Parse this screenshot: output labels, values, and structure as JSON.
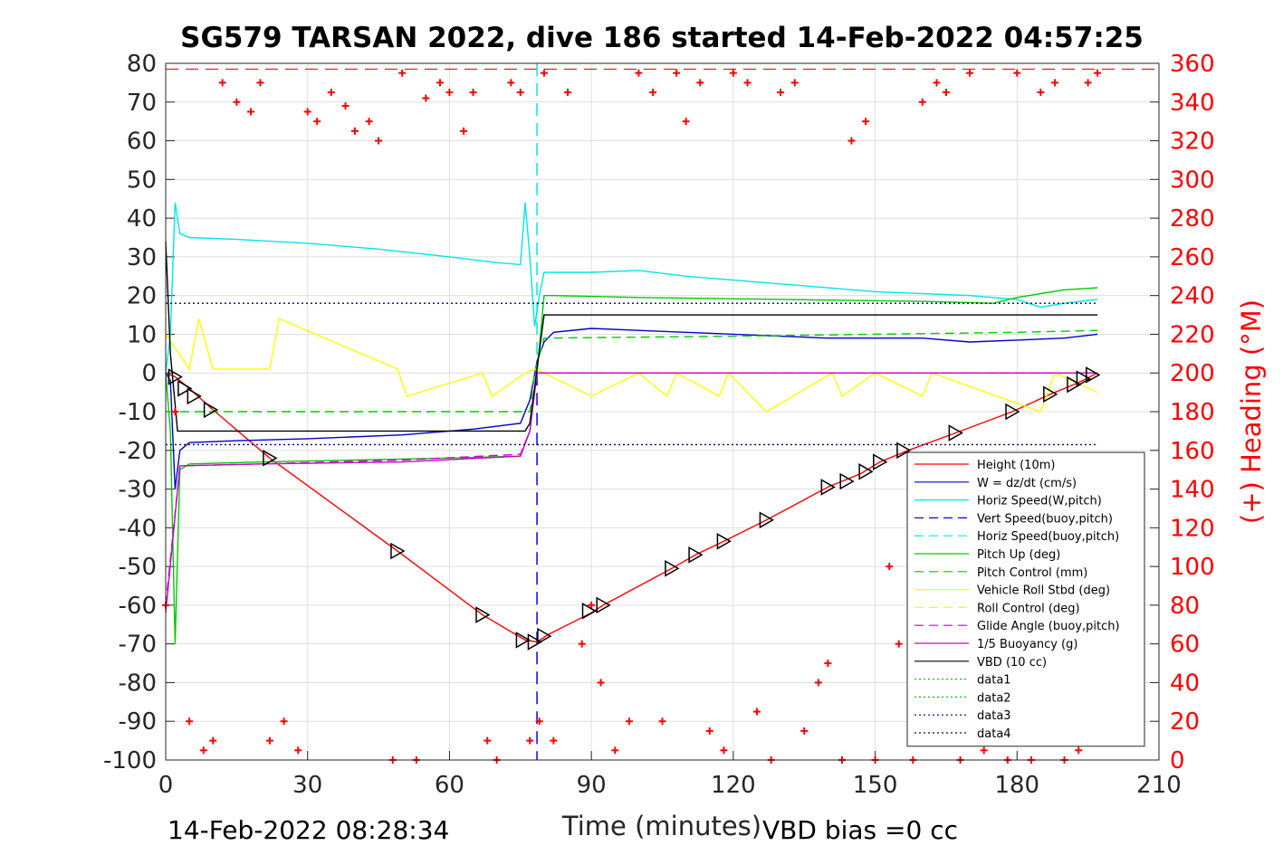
{
  "chart_data": {
    "type": "line",
    "title": "SG579 TARSAN 2022, dive 186 started 14-Feb-2022 04:57:25",
    "xlabel": "Time (minutes)",
    "ylabel": "",
    "ylabel_right": "(+) Heading (°M)",
    "xlim": [
      0,
      210
    ],
    "ylim": [
      -100,
      80
    ],
    "ylim_right": [
      0,
      360
    ],
    "x_ticks": [
      "0",
      "30",
      "60",
      "90",
      "120",
      "150",
      "180",
      "210"
    ],
    "y_ticks": [
      "-100",
      "-90",
      "-80",
      "-70",
      "-60",
      "-50",
      "-40",
      "-30",
      "-20",
      "-10",
      "0",
      "10",
      "20",
      "30",
      "40",
      "50",
      "60",
      "70",
      "80"
    ],
    "y_ticks_right": [
      "0",
      "20",
      "40",
      "60",
      "80",
      "100",
      "120",
      "140",
      "160",
      "180",
      "200",
      "220",
      "240",
      "260",
      "280",
      "300",
      "320",
      "340",
      "360"
    ],
    "grid": true,
    "legend_position": "lower-right",
    "footer_left": "14-Feb-2022 08:28:34",
    "footer_right": "VBD bias =0 cc",
    "apogee_time": 78.5,
    "series": [
      {
        "name": "Height (10m)",
        "color": "#ff0000",
        "style": "solid",
        "x": [
          0,
          2,
          5,
          10,
          22,
          49,
          67,
          76,
          78.5,
          81,
          90,
          92.5,
          107,
          112,
          118,
          127,
          140,
          147,
          151,
          157,
          167,
          179,
          187,
          193,
          197
        ],
        "y": [
          0,
          -1,
          -4,
          -9.5,
          -22,
          -46,
          -62.5,
          -69,
          -69.5,
          -67.5,
          -62,
          -60,
          -50.5,
          -47,
          -43.5,
          -38,
          -29.5,
          -26,
          -23,
          -20,
          -15.5,
          -10,
          -5.5,
          -2.5,
          0
        ]
      },
      {
        "name": "W = dz/dt (cm/s)",
        "color": "#0000cc",
        "style": "solid",
        "x": [
          0,
          1,
          2,
          3,
          5,
          15,
          30,
          50,
          65,
          75,
          77,
          78.5,
          80,
          82,
          90,
          100,
          120,
          140,
          160,
          170,
          180,
          190,
          197
        ],
        "y": [
          0,
          -2,
          -30,
          -20,
          -18,
          -17.5,
          -17,
          -16,
          -14.5,
          -13,
          -7,
          3,
          8,
          10.5,
          11.5,
          11,
          10,
          9,
          9,
          8,
          8.5,
          9,
          10
        ]
      },
      {
        "name": "Horiz Speed(W,pitch)",
        "color": "#00e5e5",
        "style": "solid",
        "x": [
          0,
          1,
          2,
          3,
          5,
          15,
          30,
          45,
          60,
          70,
          75,
          76,
          77,
          78,
          79,
          80,
          82,
          90,
          100,
          110,
          120,
          130,
          140,
          150,
          160,
          170,
          180,
          185,
          190,
          197
        ],
        "y": [
          0,
          10,
          44,
          36,
          35,
          34.5,
          33.5,
          32,
          30,
          28.5,
          28,
          44,
          30,
          12,
          20,
          26,
          26,
          26,
          26.5,
          25,
          24,
          23,
          22,
          21,
          20.5,
          20,
          19,
          17,
          18,
          19
        ]
      },
      {
        "name": "Vert Speed(buoy,pitch)",
        "color": "#0000ff",
        "style": "dashed",
        "x": [],
        "y": []
      },
      {
        "name": "Horiz Speed(buoy,pitch)",
        "color": "#00e5e5",
        "style": "dashed",
        "x": [],
        "y": []
      },
      {
        "name": "Pitch Up (deg)",
        "color": "#00cc00",
        "style": "solid",
        "x": [
          0,
          1,
          2,
          3,
          5,
          20,
          40,
          60,
          75,
          77,
          78.5,
          80,
          82,
          100,
          130,
          160,
          175,
          180,
          185,
          190,
          197
        ],
        "y": [
          0,
          -15,
          -70,
          -25,
          -23.5,
          -23,
          -22.5,
          -22,
          -21.5,
          -15,
          0,
          20,
          20,
          19.5,
          19,
          18.5,
          18,
          19.5,
          20.5,
          21.5,
          22
        ]
      },
      {
        "name": "Pitch Control (mm)",
        "color": "#00cc00",
        "style": "dashed",
        "x": [
          0,
          77,
          78,
          80,
          120,
          180,
          197
        ],
        "y": [
          -10,
          -10,
          0,
          9,
          9.5,
          10.5,
          11
        ]
      },
      {
        "name": "Vehicle Roll Stbd (deg)",
        "color": "#ffff00",
        "style": "solid",
        "x": [
          0,
          5,
          7,
          10,
          22,
          24,
          49,
          51,
          67,
          69,
          76,
          78,
          80,
          90,
          100,
          106,
          108,
          117,
          119,
          127,
          141,
          143,
          150,
          160,
          162,
          185,
          188,
          197
        ],
        "y": [
          10,
          1,
          14,
          1,
          1,
          14,
          1,
          -6,
          0,
          -6,
          0,
          1,
          0,
          -6,
          0,
          -6,
          0,
          -6,
          0,
          -10,
          0,
          -6,
          0,
          -6,
          0,
          -10,
          0,
          -5
        ]
      },
      {
        "name": "Roll Control (deg)",
        "color": "#ffff00",
        "style": "dashed",
        "x": [],
        "y": []
      },
      {
        "name": "Glide Angle (buoy,pitch)",
        "color": "#cc00cc",
        "style": "dashed",
        "x": [
          0,
          3,
          20,
          50,
          75,
          77,
          78.5,
          80,
          100,
          197
        ],
        "y": [
          -60,
          -24,
          -23.5,
          -22.5,
          -21,
          -15,
          0,
          0,
          0,
          0
        ]
      },
      {
        "name": "1/5 Buoyancy (g)",
        "color": "#cc00cc",
        "style": "solid",
        "x": [
          0,
          3,
          20,
          50,
          75,
          77,
          78.5,
          80,
          100,
          197
        ],
        "y": [
          -62,
          -24,
          -23.5,
          -23,
          -21.5,
          -15,
          0,
          0,
          0,
          0
        ]
      },
      {
        "name": "VBD (10 cc)",
        "color": "#000000",
        "style": "solid",
        "x": [
          0,
          1,
          2.5,
          76,
          77,
          80,
          197
        ],
        "y": [
          34,
          5,
          -15,
          -15,
          -13,
          15,
          15
        ]
      },
      {
        "name": "data1",
        "color": "#00cc00",
        "style": "dotted",
        "x": [],
        "y": []
      },
      {
        "name": "data2",
        "color": "#00cc00",
        "style": "dotted",
        "x": [],
        "y": []
      },
      {
        "name": "data3",
        "color": "#000066",
        "style": "dotted",
        "x": [
          0,
          197
        ],
        "y": [
          18,
          18
        ]
      },
      {
        "name": "data4",
        "color": "#000066",
        "style": "dotted",
        "x": [
          0,
          197
        ],
        "y": [
          -18.5,
          -18.5
        ]
      }
    ],
    "heading_series": {
      "axis": "right",
      "color": "#ff0000",
      "marker": "+",
      "target_heading": 357,
      "x": [
        0,
        2,
        5,
        8,
        10,
        12,
        15,
        18,
        20,
        22,
        25,
        28,
        30,
        32,
        35,
        38,
        40,
        43,
        45,
        48,
        50,
        53,
        55,
        58,
        60,
        63,
        65,
        68,
        70,
        73,
        75,
        77,
        79,
        80,
        82,
        85,
        88,
        90,
        92,
        95,
        98,
        100,
        103,
        105,
        108,
        110,
        113,
        115,
        118,
        120,
        123,
        125,
        128,
        130,
        133,
        135,
        138,
        140,
        143,
        145,
        148,
        150,
        153,
        155,
        158,
        160,
        163,
        165,
        168,
        170,
        173,
        175,
        178,
        180,
        183,
        185,
        188,
        190,
        193,
        195,
        197
      ],
      "y": [
        80,
        180,
        20,
        5,
        10,
        350,
        340,
        335,
        350,
        10,
        20,
        5,
        335,
        330,
        345,
        338,
        325,
        330,
        320,
        0,
        355,
        0,
        342,
        350,
        345,
        325,
        345,
        10,
        0,
        350,
        345,
        10,
        20,
        355,
        10,
        345,
        60,
        80,
        40,
        5,
        20,
        355,
        345,
        20,
        355,
        330,
        350,
        15,
        5,
        355,
        350,
        25,
        0,
        345,
        350,
        15,
        40,
        50,
        0,
        320,
        330,
        0,
        100,
        60,
        0,
        340,
        350,
        345,
        0,
        355,
        5,
        10,
        0,
        355,
        0,
        345,
        350,
        0,
        5,
        350,
        355
      ]
    },
    "markers": {
      "symbol": "triangle",
      "color": "#000000",
      "x": [
        2,
        4,
        6,
        9.5,
        22,
        49,
        67,
        75.5,
        78,
        80,
        89.5,
        92.5,
        107,
        112,
        118,
        127,
        140,
        144,
        148,
        151,
        156,
        167,
        179,
        187,
        192,
        194,
        196
      ],
      "y": [
        -1,
        -4,
        -6,
        -9.5,
        -22,
        -46,
        -62.5,
        -69,
        -69.5,
        -68,
        -61.5,
        -60,
        -50.5,
        -47,
        -43.5,
        -38,
        -29.5,
        -28,
        -25.5,
        -23,
        -20,
        -15.5,
        -10,
        -5.5,
        -3,
        -1.5,
        -0.5
      ]
    }
  }
}
